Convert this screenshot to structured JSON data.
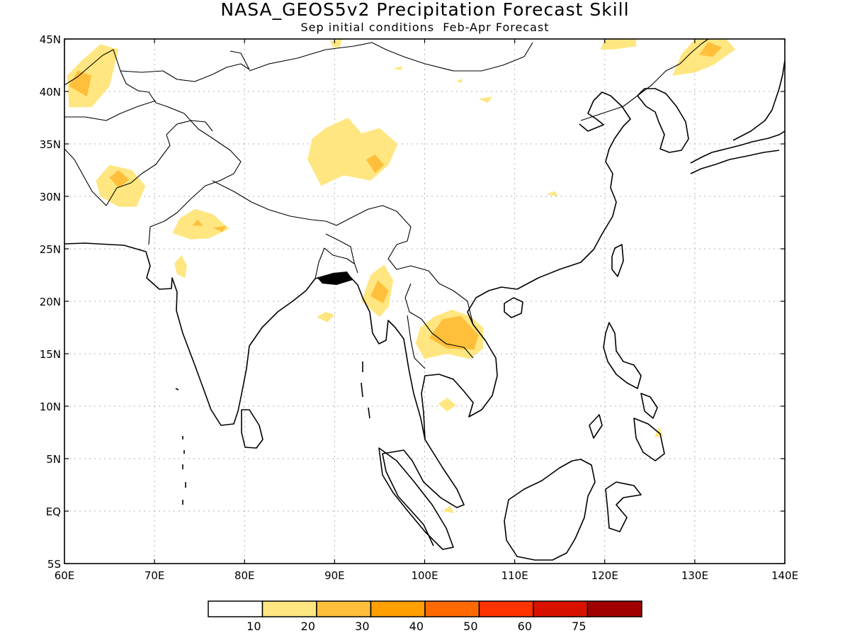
{
  "title": "NASA_GEOS5v2 Precipitation Forecast Skill",
  "subtitle": "Sep initial conditions  Feb-Apr Forecast",
  "map": {
    "lon_range": [
      60,
      140
    ],
    "lat_range": [
      -5,
      45
    ],
    "lon_ticks": [
      {
        "value": 60,
        "label": "60E"
      },
      {
        "value": 70,
        "label": "70E"
      },
      {
        "value": 80,
        "label": "80E"
      },
      {
        "value": 90,
        "label": "90E"
      },
      {
        "value": 100,
        "label": "100E"
      },
      {
        "value": 110,
        "label": "110E"
      },
      {
        "value": 120,
        "label": "120E"
      },
      {
        "value": 130,
        "label": "130E"
      },
      {
        "value": 140,
        "label": "140E"
      }
    ],
    "lat_ticks": [
      {
        "value": 45,
        "label": "45N"
      },
      {
        "value": 40,
        "label": "40N"
      },
      {
        "value": 35,
        "label": "35N"
      },
      {
        "value": 30,
        "label": "30N"
      },
      {
        "value": 25,
        "label": "25N"
      },
      {
        "value": 20,
        "label": "20N"
      },
      {
        "value": 15,
        "label": "15N"
      },
      {
        "value": 10,
        "label": "10N"
      },
      {
        "value": 5,
        "label": "5N"
      },
      {
        "value": 0,
        "label": "EQ"
      },
      {
        "value": -5,
        "label": "5S"
      }
    ]
  },
  "colorbar": {
    "colors": [
      "#ffffff",
      "#ffe680",
      "#ffbf3a",
      "#ff9f00",
      "#ff6a00",
      "#ff3300",
      "#d91200",
      "#a00000"
    ],
    "labels": [
      "10",
      "20",
      "30",
      "40",
      "50",
      "60",
      "75"
    ]
  },
  "skill_regions": [
    {
      "level": 1,
      "points": [
        [
          60.3,
          41.5
        ],
        [
          62,
          43
        ],
        [
          64,
          44.5
        ],
        [
          66,
          44
        ],
        [
          65,
          40.5
        ],
        [
          63,
          38.5
        ],
        [
          60.5,
          38.5
        ]
      ]
    },
    {
      "level": 2,
      "points": [
        [
          60.5,
          40.5
        ],
        [
          61.5,
          42
        ],
        [
          63,
          41.5
        ],
        [
          62.5,
          39.5
        ]
      ]
    },
    {
      "level": 1,
      "points": [
        [
          63.5,
          31.5
        ],
        [
          65,
          33
        ],
        [
          67.5,
          32.5
        ],
        [
          69,
          31
        ],
        [
          68,
          29
        ],
        [
          66,
          29
        ],
        [
          64,
          30
        ]
      ]
    },
    {
      "level": 2,
      "points": [
        [
          65,
          31.8
        ],
        [
          66,
          32.5
        ],
        [
          67.2,
          31.6
        ],
        [
          66,
          30.8
        ]
      ]
    },
    {
      "level": 1,
      "points": [
        [
          72,
          26.5
        ],
        [
          72.8,
          27.9
        ],
        [
          74.5,
          28.8
        ],
        [
          76.5,
          28.3
        ],
        [
          78.3,
          26.9
        ],
        [
          76,
          26
        ],
        [
          74,
          25.9
        ]
      ]
    },
    {
      "level": 2,
      "points": [
        [
          74.2,
          27.2
        ],
        [
          74.8,
          27.8
        ],
        [
          75.4,
          27.2
        ]
      ]
    },
    {
      "level": 2,
      "points": [
        [
          76.5,
          27
        ],
        [
          78,
          27.2
        ],
        [
          77.5,
          26.6
        ]
      ]
    },
    {
      "level": 1,
      "points": [
        [
          72.2,
          23.6
        ],
        [
          73,
          24.4
        ],
        [
          73.6,
          23.4
        ],
        [
          73.4,
          22.2
        ],
        [
          72.5,
          22.6
        ]
      ]
    },
    {
      "level": 1,
      "points": [
        [
          87,
          33.5
        ],
        [
          87.5,
          35.5
        ],
        [
          89,
          36.5
        ],
        [
          91.5,
          37.5
        ],
        [
          93,
          36
        ],
        [
          95,
          36.5
        ],
        [
          97,
          35
        ],
        [
          96,
          33
        ],
        [
          94,
          31.5
        ],
        [
          91,
          32
        ],
        [
          88.5,
          31
        ]
      ]
    },
    {
      "level": 2,
      "points": [
        [
          93.5,
          33.5
        ],
        [
          94.5,
          34
        ],
        [
          95.5,
          33
        ],
        [
          94.5,
          32.2
        ]
      ]
    },
    {
      "level": 1,
      "points": [
        [
          88,
          18.5
        ],
        [
          89,
          19
        ],
        [
          90,
          18.7
        ],
        [
          89.2,
          18
        ]
      ]
    },
    {
      "level": 1,
      "points": [
        [
          93,
          20
        ],
        [
          94,
          22.5
        ],
        [
          95.5,
          23.5
        ],
        [
          96.5,
          22
        ],
        [
          96,
          19.5
        ],
        [
          95,
          18.5
        ]
      ]
    },
    {
      "level": 2,
      "points": [
        [
          94,
          20.5
        ],
        [
          94.8,
          22
        ],
        [
          96,
          21
        ],
        [
          95.4,
          19.8
        ]
      ]
    },
    {
      "level": 1,
      "points": [
        [
          99,
          16
        ],
        [
          99.5,
          17.5
        ],
        [
          101,
          18.5
        ],
        [
          103,
          19.2
        ],
        [
          105,
          18.6
        ],
        [
          106.5,
          17.5
        ],
        [
          106.5,
          15.5
        ],
        [
          105,
          14.5
        ],
        [
          102.5,
          15
        ],
        [
          100,
          14.5
        ]
      ]
    },
    {
      "level": 2,
      "points": [
        [
          100.5,
          16.5
        ],
        [
          102,
          18.3
        ],
        [
          104,
          18.6
        ],
        [
          106,
          16.8
        ],
        [
          105.5,
          15.4
        ],
        [
          102.5,
          15.5
        ]
      ]
    },
    {
      "level": 1,
      "points": [
        [
          101.5,
          10.2
        ],
        [
          102.5,
          10.8
        ],
        [
          103.5,
          10.1
        ],
        [
          102.5,
          9.5
        ]
      ]
    },
    {
      "level": 1,
      "points": [
        [
          113.5,
          30.2
        ],
        [
          114.5,
          30.5
        ],
        [
          114.8,
          30
        ]
      ]
    },
    {
      "level": 1,
      "points": [
        [
          119.5,
          44
        ],
        [
          120,
          45
        ],
        [
          123.5,
          45
        ],
        [
          123.5,
          44.3
        ],
        [
          121,
          44
        ]
      ]
    },
    {
      "level": 1,
      "points": [
        [
          127.5,
          41.5
        ],
        [
          128.5,
          43.5
        ],
        [
          130,
          45
        ],
        [
          133.5,
          45
        ],
        [
          134.5,
          44
        ],
        [
          132,
          42.5
        ],
        [
          130,
          41.8
        ]
      ]
    },
    {
      "level": 2,
      "points": [
        [
          130.5,
          43.5
        ],
        [
          131.5,
          44.7
        ],
        [
          133,
          44.2
        ],
        [
          132,
          43.3
        ]
      ]
    },
    {
      "level": 1,
      "points": [
        [
          125.5,
          7
        ],
        [
          126,
          8
        ],
        [
          126.5,
          7.2
        ]
      ]
    },
    {
      "level": 1,
      "points": [
        [
          102,
          0
        ],
        [
          102.8,
          0.5
        ],
        [
          103.3,
          -0.2
        ]
      ]
    },
    {
      "level": 1,
      "points": [
        [
          89.5,
          44.8
        ],
        [
          90.8,
          45
        ],
        [
          90.6,
          44.2
        ],
        [
          89.8,
          44.2
        ]
      ]
    },
    {
      "level": 1,
      "points": [
        [
          106,
          39.3
        ],
        [
          107.5,
          39.5
        ],
        [
          107,
          38.9
        ]
      ]
    },
    {
      "level": 1,
      "points": [
        [
          96.5,
          42.2
        ],
        [
          97.5,
          42.4
        ],
        [
          97.4,
          42
        ]
      ]
    },
    {
      "level": 1,
      "points": [
        [
          103.5,
          41
        ],
        [
          104.2,
          41.2
        ],
        [
          104.1,
          40.8
        ]
      ]
    }
  ]
}
